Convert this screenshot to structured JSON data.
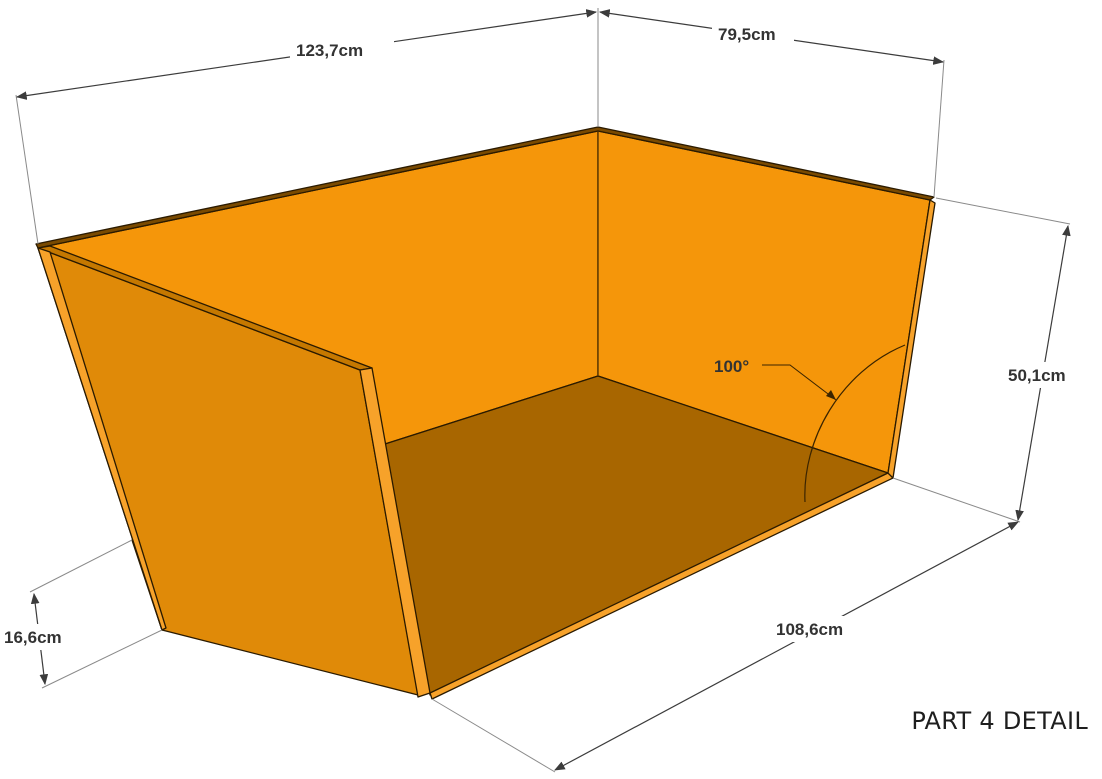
{
  "dimensions": {
    "length_top": "123,7cm",
    "depth_top": "79,5cm",
    "height": "50,1cm",
    "base_length": "108,6cm",
    "leg_height": "16,6cm",
    "angle": "100°"
  },
  "caption": "PART 4 DETAIL",
  "colors": {
    "panel_back": "#F5960A",
    "panel_front": "#E08A08",
    "panel_edge": "#F7A22A",
    "floor": "#A86600",
    "line": "#3c3c3c"
  }
}
